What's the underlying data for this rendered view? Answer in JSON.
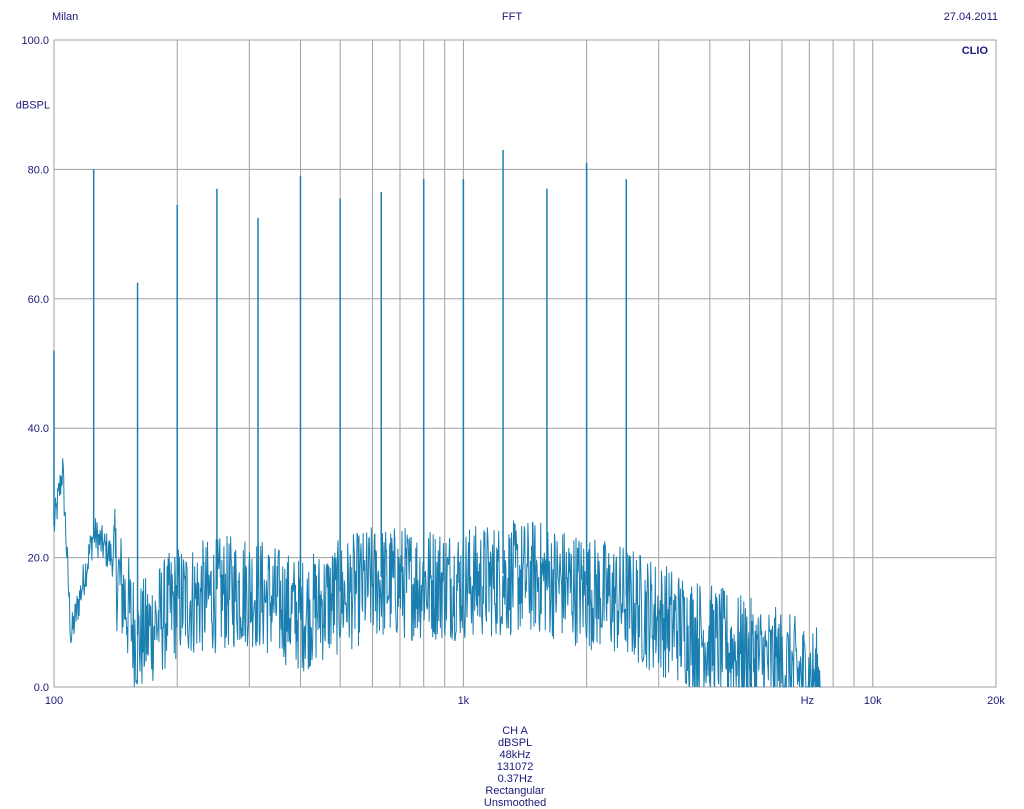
{
  "header": {
    "left": "Milan",
    "center": "FFT",
    "right": "27.04.2011"
  },
  "brand": "CLIO",
  "footer": [
    "CH A",
    "dBSPL",
    "48kHz",
    "131072",
    "0.37Hz",
    "Rectangular",
    "Unsmoothed"
  ],
  "colors": {
    "trace": "#1a7fb0",
    "grid": "#a0a0a0",
    "text": "#1a1a7a"
  },
  "chart_data": {
    "type": "line",
    "title": "FFT",
    "ylabel": "dBSPL",
    "xunit": "Hz",
    "xscale": "log",
    "xlim": [
      100,
      20000
    ],
    "ylim": [
      0,
      100
    ],
    "grid": true,
    "y_ticks": [
      "0.0",
      "20.0",
      "40.0",
      "60.0",
      "80.0",
      "100.0"
    ],
    "x_tick_labels": [
      {
        "value": 100,
        "label": "100"
      },
      {
        "value": 1000,
        "label": "1k"
      },
      {
        "value": 10000,
        "label": "10k"
      },
      {
        "value": 20000,
        "label": "20k"
      }
    ],
    "x_minor_ticks": [
      200,
      300,
      400,
      500,
      600,
      700,
      800,
      900,
      2000,
      3000,
      4000,
      5000,
      6000,
      7000,
      8000,
      9000
    ],
    "peaks": [
      {
        "x": 100,
        "y": 52
      },
      {
        "x": 125,
        "y": 80
      },
      {
        "x": 160,
        "y": 62.5
      },
      {
        "x": 200,
        "y": 74.5
      },
      {
        "x": 250,
        "y": 77
      },
      {
        "x": 315,
        "y": 72.5
      },
      {
        "x": 400,
        "y": 79
      },
      {
        "x": 500,
        "y": 75.5
      },
      {
        "x": 630,
        "y": 76.5
      },
      {
        "x": 800,
        "y": 78.5
      },
      {
        "x": 1000,
        "y": 78.5
      },
      {
        "x": 1250,
        "y": 83
      },
      {
        "x": 1600,
        "y": 77
      },
      {
        "x": 2000,
        "y": 81
      },
      {
        "x": 2500,
        "y": 78.5
      }
    ],
    "noise_floor": [
      {
        "x": 100,
        "y": 25
      },
      {
        "x": 105,
        "y": 34
      },
      {
        "x": 110,
        "y": 8
      },
      {
        "x": 125,
        "y": 24
      },
      {
        "x": 140,
        "y": 20
      },
      {
        "x": 160,
        "y": 8
      },
      {
        "x": 200,
        "y": 14
      },
      {
        "x": 300,
        "y": 16
      },
      {
        "x": 400,
        "y": 12
      },
      {
        "x": 600,
        "y": 17
      },
      {
        "x": 1000,
        "y": 17
      },
      {
        "x": 1500,
        "y": 18
      },
      {
        "x": 2500,
        "y": 14
      },
      {
        "x": 4000,
        "y": 8
      },
      {
        "x": 6000,
        "y": 4
      },
      {
        "x": 7500,
        "y": 1
      }
    ]
  }
}
